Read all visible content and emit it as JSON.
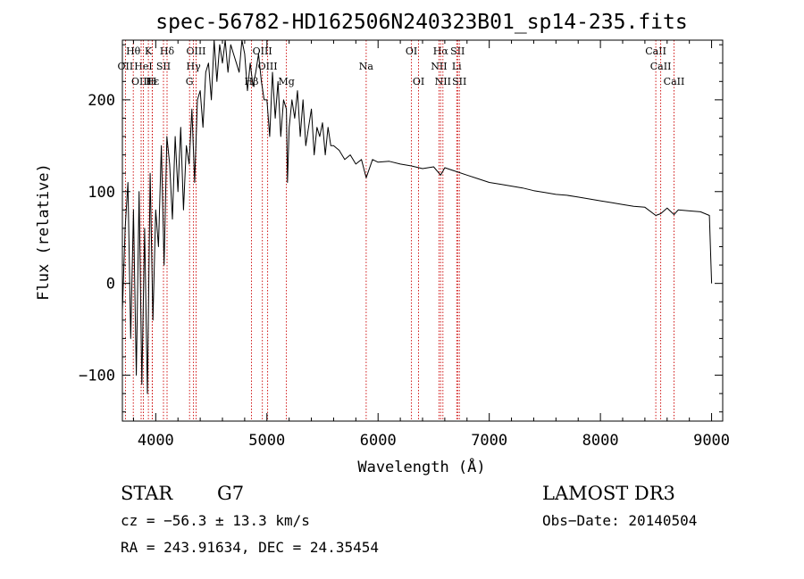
{
  "chart_data": {
    "type": "line",
    "title": "spec-56782-HD162506N240323B01_sp14-235.fits",
    "xlabel": "Wavelength (Å)",
    "ylabel": "Flux (relative)",
    "xlim": [
      3700,
      9100
    ],
    "ylim": [
      -150,
      265
    ],
    "x_ticks": [
      4000,
      5000,
      6000,
      7000,
      8000,
      9000
    ],
    "x_tick_labels": [
      "4000",
      "5000",
      "6000",
      "7000",
      "8000",
      "9000"
    ],
    "y_ticks": [
      -100,
      0,
      100,
      200
    ],
    "y_tick_labels": [
      "−100",
      "0",
      "100",
      "200"
    ],
    "series": [
      {
        "name": "spectrum",
        "x": [
          3700,
          3725,
          3750,
          3775,
          3800,
          3825,
          3850,
          3875,
          3900,
          3925,
          3950,
          3975,
          4000,
          4025,
          4050,
          4075,
          4100,
          4125,
          4150,
          4175,
          4200,
          4225,
          4250,
          4275,
          4300,
          4325,
          4350,
          4375,
          4400,
          4425,
          4450,
          4475,
          4500,
          4525,
          4550,
          4575,
          4600,
          4625,
          4650,
          4675,
          4700,
          4725,
          4750,
          4775,
          4800,
          4825,
          4850,
          4875,
          4900,
          4925,
          4950,
          4975,
          5000,
          5025,
          5050,
          5075,
          5100,
          5125,
          5150,
          5175,
          5185,
          5200,
          5225,
          5250,
          5275,
          5300,
          5325,
          5350,
          5375,
          5400,
          5425,
          5450,
          5475,
          5500,
          5525,
          5550,
          5575,
          5600,
          5650,
          5700,
          5750,
          5800,
          5850,
          5893,
          5950,
          6000,
          6100,
          6200,
          6300,
          6400,
          6500,
          6563,
          6600,
          6700,
          6800,
          6900,
          7000,
          7100,
          7200,
          7300,
          7400,
          7500,
          7600,
          7700,
          7800,
          7900,
          8000,
          8100,
          8200,
          8300,
          8400,
          8498,
          8542,
          8600,
          8662,
          8700,
          8800,
          8900,
          8980,
          8995,
          9000
        ],
        "y": [
          -30,
          60,
          110,
          -60,
          80,
          -100,
          100,
          -110,
          60,
          -120,
          120,
          -40,
          80,
          40,
          150,
          20,
          160,
          130,
          70,
          160,
          100,
          170,
          80,
          150,
          130,
          190,
          110,
          200,
          210,
          170,
          230,
          240,
          200,
          270,
          220,
          260,
          240,
          280,
          230,
          260,
          250,
          240,
          230,
          270,
          250,
          210,
          240,
          215,
          230,
          250,
          220,
          200,
          200,
          160,
          230,
          180,
          220,
          160,
          200,
          190,
          110,
          170,
          200,
          180,
          210,
          160,
          200,
          150,
          170,
          190,
          140,
          170,
          160,
          175,
          140,
          170,
          150,
          150,
          145,
          135,
          140,
          130,
          135,
          115,
          135,
          132,
          133,
          130,
          128,
          125,
          127,
          118,
          126,
          122,
          118,
          114,
          110,
          108,
          106,
          104,
          101,
          99,
          97,
          96,
          94,
          92,
          90,
          88,
          86,
          84,
          83,
          74,
          76,
          82,
          75,
          80,
          79,
          78,
          74,
          20,
          0
        ]
      }
    ],
    "spectral_lines": [
      {
        "label": "Hθ",
        "wave": 3798,
        "row": 1
      },
      {
        "label": "K",
        "wave": 3934,
        "row": 1
      },
      {
        "label": "Hδ",
        "wave": 4102,
        "row": 1
      },
      {
        "label": "OIII",
        "wave": 4363,
        "row": 1
      },
      {
        "label": "OIII",
        "wave": 4959,
        "row": 1
      },
      {
        "label": "OI",
        "wave": 6300,
        "row": 1
      },
      {
        "label": "Hα",
        "wave": 6563,
        "row": 1
      },
      {
        "label": "SII",
        "wave": 6716,
        "row": 1
      },
      {
        "label": "CaII",
        "wave": 8498,
        "row": 1
      },
      {
        "label": "OII",
        "wave": 3727,
        "row": 2
      },
      {
        "label": "HeI",
        "wave": 3889,
        "row": 2
      },
      {
        "label": "SII",
        "wave": 4070,
        "row": 2
      },
      {
        "label": "Hγ",
        "wave": 4340,
        "row": 2
      },
      {
        "label": "OIII",
        "wave": 5007,
        "row": 2
      },
      {
        "label": "Na",
        "wave": 5893,
        "row": 2
      },
      {
        "label": "NII",
        "wave": 6548,
        "row": 2
      },
      {
        "label": "Li",
        "wave": 6708,
        "row": 2
      },
      {
        "label": "CaII",
        "wave": 8542,
        "row": 2
      },
      {
        "label": "OIII",
        "wave": 3869,
        "row": 3
      },
      {
        "label": "Hε",
        "wave": 3970,
        "row": 3
      },
      {
        "label": "H",
        "wave": 3968,
        "row": 3
      },
      {
        "label": "G",
        "wave": 4304,
        "row": 3
      },
      {
        "label": "Hβ",
        "wave": 4861,
        "row": 3
      },
      {
        "label": "Mg",
        "wave": 5175,
        "row": 3
      },
      {
        "label": "OI",
        "wave": 6364,
        "row": 3
      },
      {
        "label": "NII",
        "wave": 6583,
        "row": 3
      },
      {
        "label": "SII",
        "wave": 6731,
        "row": 3
      },
      {
        "label": "CaII",
        "wave": 8662,
        "row": 3
      }
    ]
  },
  "info": {
    "object_type": "STAR",
    "subclass": "G7",
    "survey": "LAMOST DR3",
    "redshift": "cz = −56.3 ± 13.3 km/s",
    "obs_date": "Obs−Date: 20140504",
    "coords": "RA = 243.91634, DEC =  24.35454"
  },
  "colors": {
    "line_marker": "#cc0000",
    "spectrum": "#000000",
    "axes": "#000000"
  }
}
